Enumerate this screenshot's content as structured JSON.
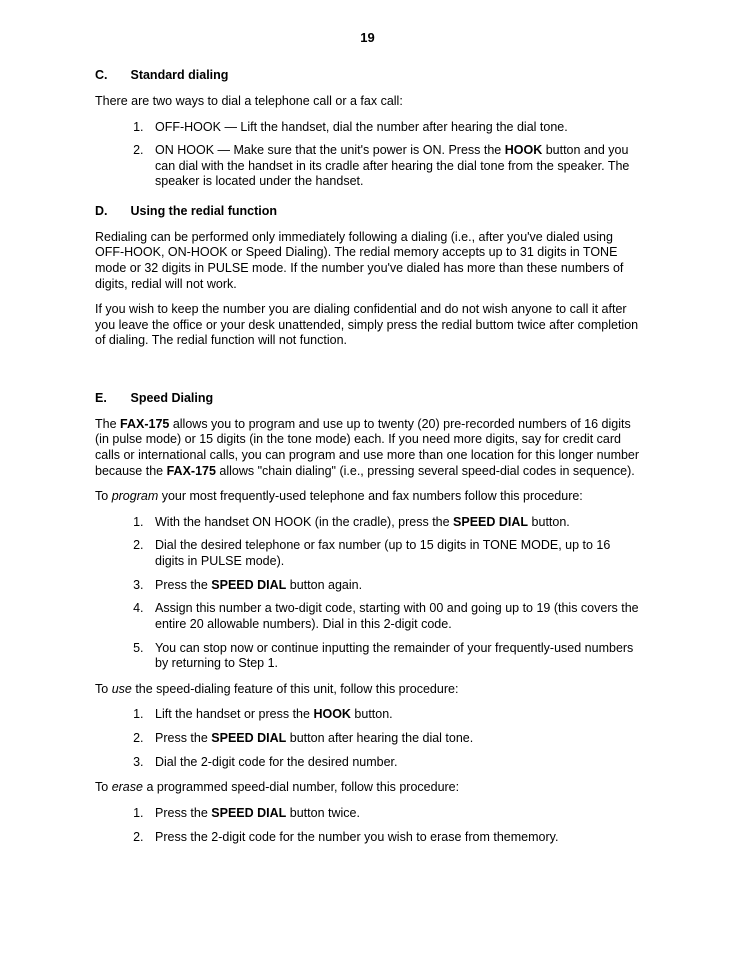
{
  "page_number": "19",
  "sections": {
    "C": {
      "letter": "C.",
      "title": "Standard dialing",
      "intro": "There are two ways to dial a telephone call or a fax call:",
      "items": {
        "1_pre": "OFF-HOOK — Lift the handset, dial the number after hearing the dial tone.",
        "2_pre": "ON HOOK — Make sure that the unit's power is ON.  Press the ",
        "2_bold": "HOOK",
        "2_post": " button and you can dial with the handset in its cradle after hearing the dial tone from the speaker. The speaker is located under the handset."
      }
    },
    "D": {
      "letter": "D.",
      "title": "Using the redial function",
      "p1": "Redialing can be performed only immediately following a  dialing (i.e., after you've dialed using OFF-HOOK, ON-HOOK or Speed Dialing).  The redial memory accepts up to 31 digits in TONE mode or 32 digits in PULSE mode.  If the number you've dialed has more than these numbers of digits, redial will not work.",
      "p2": "If you wish to keep the number you are dialing confidential and do not wish anyone to call it after you  leave the office or your desk unattended, simply press the redial buttom twice after completion of dialing.  The redial function will not function."
    },
    "E": {
      "letter": "E.",
      "title": "Speed Dialing",
      "p1_a": "The ",
      "p1_b": "FAX-175",
      "p1_c": " allows you to program and use up to twenty (20) pre-recorded numbers of 16 digits (in pulse mode) or 15 digits (in the tone mode) each.  If you need more digits, say for credit card calls or international calls, you can program and use more than one location for this longer number because the ",
      "p1_d": "FAX-175",
      "p1_e": " allows \"chain dialing\" (i.e., pressing several speed-dial codes in sequence).",
      "program_lead_a": "To ",
      "program_lead_b": "program",
      "program_lead_c": " your most frequently-used telephone and fax numbers follow this procedure:",
      "prog_items": {
        "1_a": "With the handset ON HOOK (in the cradle), press the ",
        "1_b": "SPEED DIAL",
        "1_c": " button.",
        "2": "Dial the desired telephone or fax number (up to 15 digits in TONE MODE, up to 16 digits in PULSE mode).",
        "3_a": "Press the ",
        "3_b": "SPEED DIAL",
        "3_c": " button again.",
        "4": "Assign this number a two-digit code, starting with 00 and going up to 19 (this covers the entire 20 allowable numbers).  Dial in this 2-digit code.",
        "5": "You can stop now or continue inputting the remainder of your frequently-used numbers by returning to Step 1."
      },
      "use_lead_a": "To ",
      "use_lead_b": "use",
      "use_lead_c": " the speed-dialing feature of this unit, follow this procedure:",
      "use_items": {
        "1_a": "Lift the handset or press the ",
        "1_b": "HOOK",
        "1_c": " button.",
        "2_a": "Press the ",
        "2_b": "SPEED DIAL",
        "2_c": " button after hearing the dial tone.",
        "3": "Dial the 2-digit code for the desired number."
      },
      "erase_lead_a": "To ",
      "erase_lead_b": "erase",
      "erase_lead_c": " a programmed speed-dial number, follow this procedure:",
      "erase_items": {
        "1_a": "Press the ",
        "1_b": "SPEED DIAL",
        "1_c": " button twice.",
        "2": "Press the 2-digit code for the number you wish to erase from thememory."
      }
    }
  }
}
